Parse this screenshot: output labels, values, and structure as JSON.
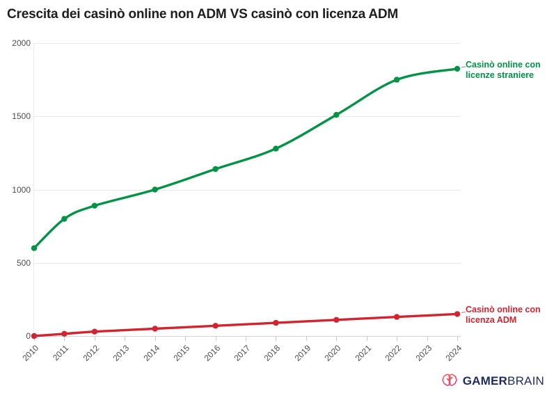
{
  "title": "Crescita dei casinò online non ADM VS casinò con licenza ADM",
  "chart_data": {
    "type": "line",
    "title": "Crescita dei casinò online non ADM VS casinò con licenza ADM",
    "x": [
      2010,
      2011,
      2012,
      2014,
      2016,
      2018,
      2020,
      2022,
      2024
    ],
    "xticks": [
      2010,
      2011,
      2012,
      2013,
      2014,
      2015,
      2016,
      2017,
      2018,
      2019,
      2020,
      2021,
      2022,
      2023,
      2024
    ],
    "yticks": [
      0,
      500,
      1000,
      1500,
      2000
    ],
    "ylim": [
      0,
      2000
    ],
    "xlim": [
      2010,
      2024
    ],
    "grid": "horizontal",
    "legend_position": "end-of-line-labels",
    "series": [
      {
        "name": "Casinò online con licenze straniere",
        "label_line1": "Casinò online con",
        "label_line2": "licenze straniere",
        "color": "#009245",
        "values": [
          600,
          800,
          890,
          1000,
          1140,
          1280,
          1510,
          1750,
          1825
        ]
      },
      {
        "name": "Casinò online con licenza ADM",
        "label_line1": "Casinò online con",
        "label_line2": "licenza ADM",
        "color": "#d1242f",
        "values": [
          0,
          15,
          30,
          50,
          70,
          90,
          110,
          130,
          150
        ]
      }
    ]
  },
  "footer": {
    "brand_bold": "GAMER",
    "brand_light": "BRAIN"
  },
  "colors": {
    "grid": "#e8e8e8",
    "zero_line": "#d2d2d2",
    "axis_line": "#ededed",
    "tick": "#c9c9c9",
    "axis_text": "#4d4d4d",
    "title_text": "#1d1d1d",
    "connector_dash": "#9a9a9a",
    "brand_navy": "#1e2b5c",
    "brain_gradient": [
      "#f2703e",
      "#ee3f6a",
      "#d9408c"
    ]
  }
}
